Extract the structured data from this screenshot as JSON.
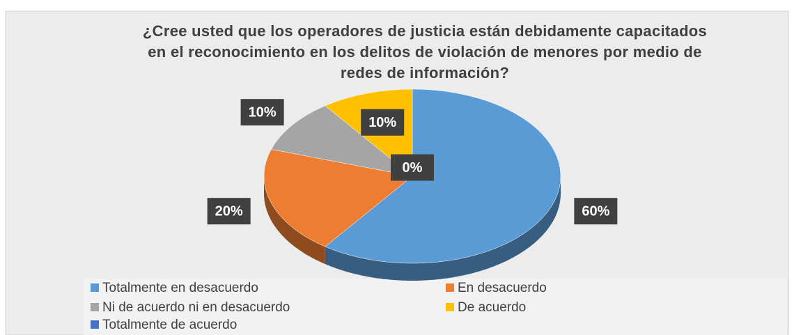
{
  "chart_data": {
    "type": "pie",
    "title": "¿Cree usted que los operadores de justicia están debidamente capacitados en el reconocimiento en los delitos de violación de menores por medio de redes de información?",
    "categories": [
      "Totalmente en desacuerdo",
      "En desacuerdo",
      "Ni de acuerdo ni en desacuerdo",
      "De acuerdo",
      "Totalmente de acuerdo"
    ],
    "values": [
      60,
      20,
      10,
      10,
      0
    ],
    "value_labels": [
      "60%",
      "20%",
      "10%",
      "10%",
      "0%"
    ],
    "colors": [
      "#5b9bd5",
      "#ed7d31",
      "#a5a5a5",
      "#ffc000",
      "#4472c4"
    ]
  }
}
